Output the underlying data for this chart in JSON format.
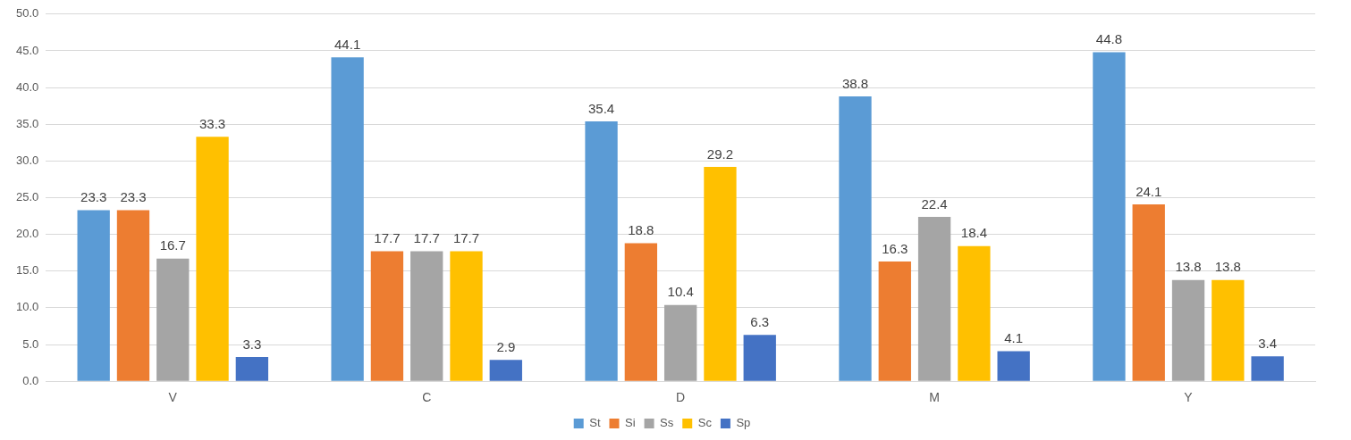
{
  "chart_data": {
    "type": "bar",
    "categories": [
      "V",
      "C",
      "D",
      "M",
      "Y"
    ],
    "series": [
      {
        "name": "St",
        "color": "#5b9bd5",
        "values": [
          23.3,
          44.1,
          35.4,
          38.8,
          44.8
        ]
      },
      {
        "name": "Si",
        "color": "#ed7d31",
        "values": [
          23.3,
          17.7,
          18.8,
          16.3,
          24.1
        ]
      },
      {
        "name": "Ss",
        "color": "#a5a5a5",
        "values": [
          16.7,
          17.7,
          10.4,
          22.4,
          13.8
        ]
      },
      {
        "name": "Sc",
        "color": "#ffc000",
        "values": [
          33.3,
          17.7,
          29.2,
          18.4,
          13.8
        ]
      },
      {
        "name": "Sp",
        "color": "#4472c4",
        "values": [
          3.3,
          2.9,
          6.3,
          4.1,
          3.4
        ]
      }
    ],
    "ylim": [
      0,
      50
    ],
    "yticks": [
      {
        "value": 0,
        "label": "0.0"
      },
      {
        "value": 5,
        "label": "5.0"
      },
      {
        "value": 10,
        "label": "10.0"
      },
      {
        "value": 15,
        "label": "15.0"
      },
      {
        "value": 20,
        "label": "20.0"
      },
      {
        "value": 25,
        "label": "25.0"
      },
      {
        "value": 30,
        "label": "30.0"
      },
      {
        "value": 35,
        "label": "35.0"
      },
      {
        "value": 40,
        "label": "40.0"
      },
      {
        "value": 45,
        "label": "45.0"
      },
      {
        "value": 50,
        "label": "50.0"
      }
    ],
    "grid": "y",
    "legend": "bottom",
    "data_labels": true
  }
}
